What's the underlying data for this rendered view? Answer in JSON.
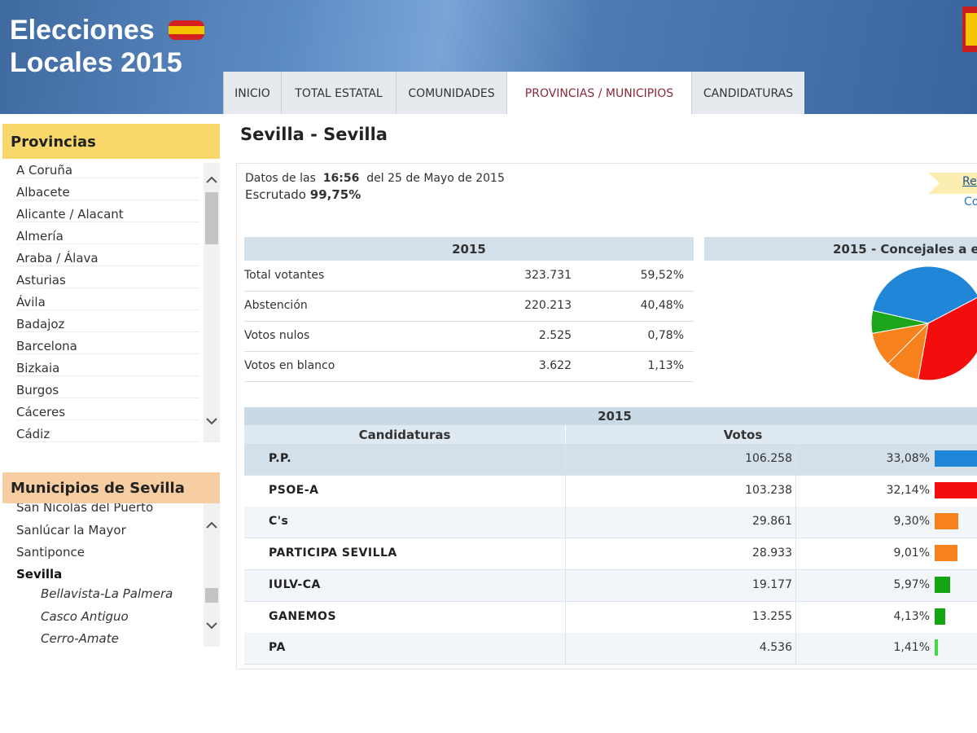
{
  "header": {
    "title_line1": "Elecciones",
    "title_line2": "Locales 2015"
  },
  "tabs": [
    "INICIO",
    "TOTAL ESTATAL",
    "COMUNIDADES",
    "PROVINCIAS / MUNICIPIOS",
    "CANDIDATURAS"
  ],
  "active_tab": 3,
  "sidebar": {
    "provinces_title": "Provincias",
    "provinces": [
      "A Coruña",
      "Albacete",
      "Alicante / Alacant",
      "Almería",
      "Araba / Álava",
      "Asturias",
      "Ávila",
      "Badajoz",
      "Barcelona",
      "Bizkaia",
      "Burgos",
      "Cáceres",
      "Cádiz"
    ],
    "municipalities_title": "Municipios de Sevilla",
    "municipalities": [
      "San Nicolás del Puerto",
      "Sanlúcar la Mayor",
      "Santiponce"
    ],
    "selected_municipality": "Sevilla",
    "districts": [
      "Bellavista-La Palmera",
      "Casco Antiguo",
      "Cerro-Amate"
    ]
  },
  "main": {
    "title": "Sevilla - Sevilla",
    "data_prefix": "Datos de las",
    "time": "16:56",
    "date_text": "del 25 de Mayo de 2015",
    "scrutiny_label": "Escrutado",
    "scrutiny": "99,75%",
    "links": [
      "Re",
      "Co"
    ]
  },
  "summary": {
    "header": "2015",
    "rows": [
      [
        "Total votantes",
        "323.731",
        "59,52%"
      ],
      [
        "Abstención",
        "220.213",
        "40,48%"
      ],
      [
        "Votos nulos",
        "2.525",
        "0,78%"
      ],
      [
        "Votos en blanco",
        "3.622",
        "1,13%"
      ]
    ]
  },
  "seats_chart": {
    "title": "2015 - Concejales a e",
    "values": [
      12,
      11,
      3,
      3,
      2
    ],
    "colors": [
      "#1f86d8",
      "#f40d0d",
      "#f7811c",
      "#f7811c",
      "#1aa51a"
    ]
  },
  "results": {
    "header": "2015",
    "columns": [
      "Candidaturas",
      "Votos"
    ],
    "rows": [
      {
        "party": "P.P.",
        "votes": "106.258",
        "pct": 33.08,
        "pct_label": "33,08%",
        "color": "#1f86d8"
      },
      {
        "party": "PSOE-A",
        "votes": "103.238",
        "pct": 32.14,
        "pct_label": "32,14%",
        "color": "#f40d0d"
      },
      {
        "party": "C's",
        "votes": "29.861",
        "pct": 9.3,
        "pct_label": "9,30%",
        "color": "#f7811c"
      },
      {
        "party": "PARTICIPA SEVILLA",
        "votes": "28.933",
        "pct": 9.01,
        "pct_label": "9,01%",
        "color": "#f7811c"
      },
      {
        "party": "IULV-CA",
        "votes": "19.177",
        "pct": 5.97,
        "pct_label": "5,97%",
        "color": "#14a514"
      },
      {
        "party": "GANEMOS",
        "votes": "13.255",
        "pct": 4.13,
        "pct_label": "4,13%",
        "color": "#14a514"
      },
      {
        "party": "PA",
        "votes": "4.536",
        "pct": 1.41,
        "pct_label": "1,41%",
        "color": "#44d944"
      }
    ]
  }
}
